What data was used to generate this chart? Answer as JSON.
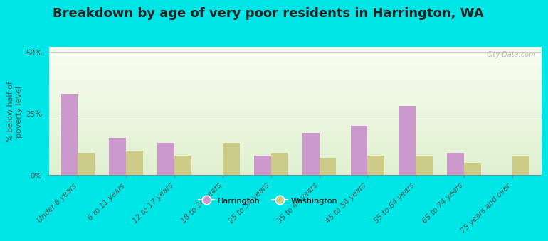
{
  "title": "Breakdown by age of very poor residents in Harrington, WA",
  "ylabel": "% below half of\npoverty level",
  "categories": [
    "Under 6 years",
    "6 to 11 years",
    "12 to 17 years",
    "18 to 24 years",
    "25 to 34 years",
    "35 to 44 years",
    "45 to 54 years",
    "55 to 64 years",
    "65 to 74 years",
    "75 years and over"
  ],
  "harrington_values": [
    33,
    15,
    13,
    0,
    8,
    17,
    20,
    28,
    9,
    0
  ],
  "washington_values": [
    9,
    10,
    8,
    13,
    9,
    7,
    8,
    8,
    5,
    8
  ],
  "harrington_color": "#cc99cc",
  "washington_color": "#cccc88",
  "background_outer": "#00e5e5",
  "grid_color": "#cccccc",
  "ylim": [
    0,
    52
  ],
  "yticks": [
    0,
    25,
    50
  ],
  "ytick_labels": [
    "0%",
    "25%",
    "50%"
  ],
  "bar_width": 0.35,
  "title_fontsize": 13,
  "label_fontsize": 8,
  "tick_fontsize": 7.5,
  "legend_label_harrington": "Harrington",
  "legend_label_washington": "Washington",
  "watermark": "City-Data.com"
}
